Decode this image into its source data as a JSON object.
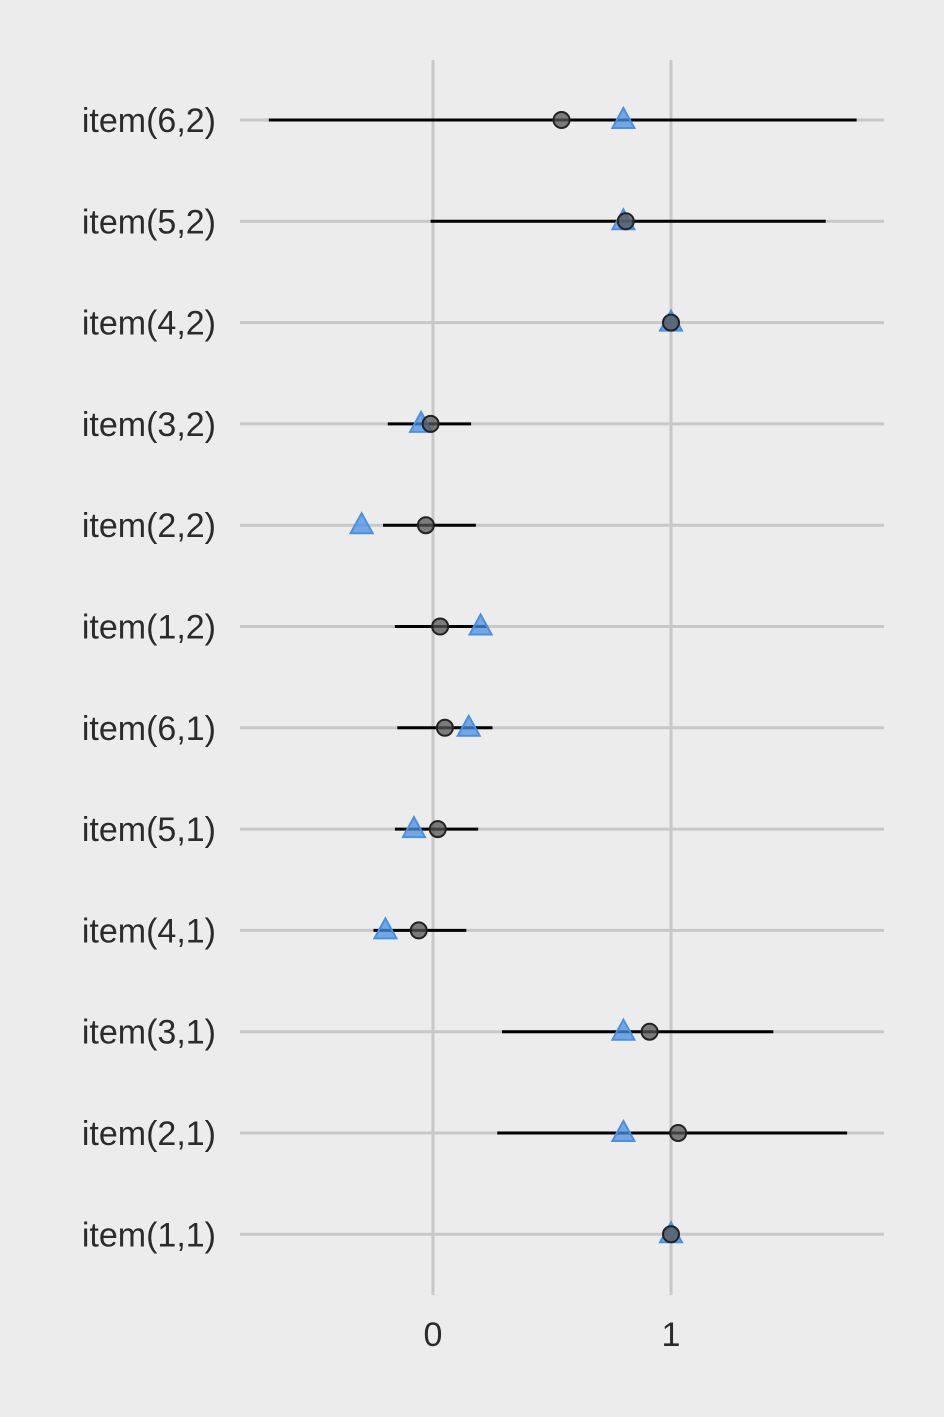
{
  "chart_data": {
    "type": "scatter",
    "xlim": [
      -0.81,
      1.9
    ],
    "xticks": [
      0,
      1
    ],
    "xtick_labels": [
      "0",
      "1"
    ],
    "categories": [
      "item(6,2)",
      "item(5,2)",
      "item(4,2)",
      "item(3,2)",
      "item(2,2)",
      "item(1,2)",
      "item(6,1)",
      "item(5,1)",
      "item(4,1)",
      "item(3,1)",
      "item(2,1)",
      "item(1,1)"
    ],
    "intervals": [
      [
        -0.69,
        1.78
      ],
      [
        -0.01,
        1.65
      ],
      null,
      [
        -0.19,
        0.16
      ],
      [
        -0.21,
        0.18
      ],
      [
        -0.16,
        0.23
      ],
      [
        -0.15,
        0.25
      ],
      [
        -0.16,
        0.19
      ],
      [
        -0.25,
        0.14
      ],
      [
        0.29,
        1.43
      ],
      [
        0.27,
        1.74
      ],
      null
    ],
    "estimates": [
      0.54,
      0.81,
      1.0,
      -0.01,
      -0.03,
      0.03,
      0.05,
      0.02,
      -0.06,
      0.91,
      1.03,
      1.0
    ],
    "true_values": [
      0.8,
      0.8,
      1.0,
      -0.05,
      -0.3,
      0.2,
      0.15,
      -0.08,
      -0.2,
      0.8,
      0.8,
      1.0
    ],
    "colors": {
      "background": "#ececec",
      "grid": "#c8c8c8",
      "interval": "#000000",
      "estimate": "#555555",
      "true_value": "#4a90e2"
    },
    "grid": true,
    "legend": "none"
  }
}
